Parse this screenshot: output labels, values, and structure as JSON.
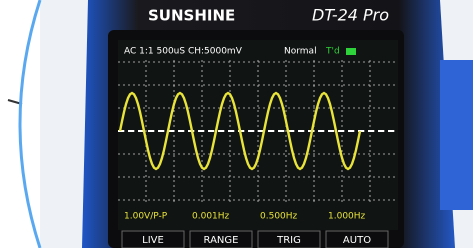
{
  "brand": "SUNSHINE",
  "model": "DT-24 Pro",
  "status": {
    "channel": "AC 1:1 500uS CH:5000mV",
    "mode": "Normal",
    "trigger": "T'd"
  },
  "readouts": [
    "1.00V/P-P",
    "0.001Hz",
    "0.500Hz",
    "1.000Hz"
  ],
  "buttons": [
    "LIVE",
    "RANGE",
    "TRIG",
    "AUTO"
  ]
}
